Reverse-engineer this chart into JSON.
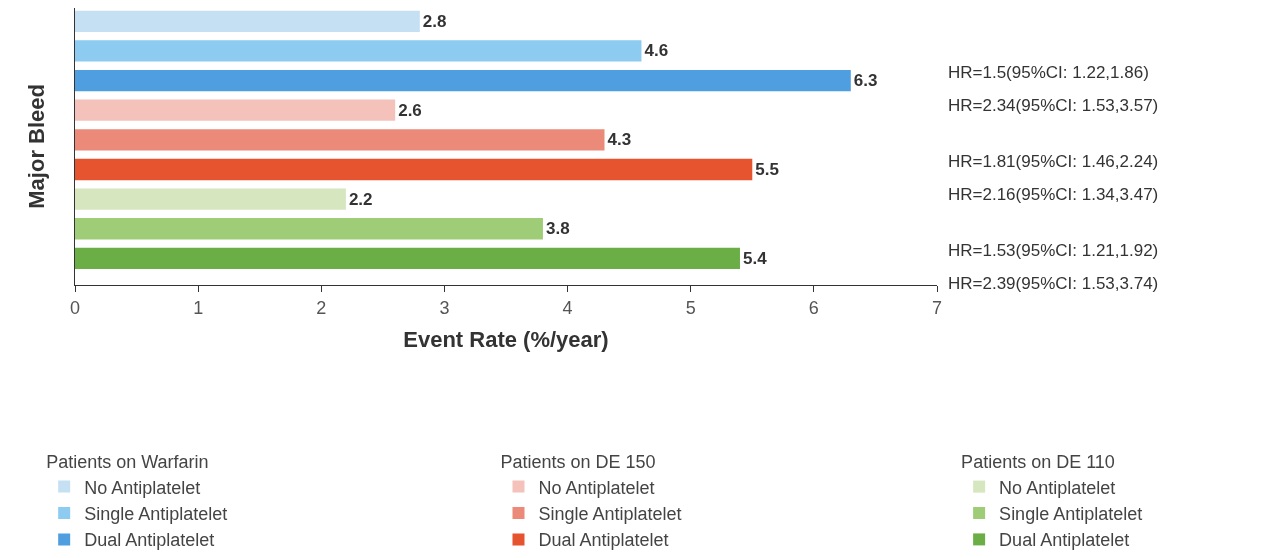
{
  "chart_data": {
    "type": "bar",
    "orientation": "horizontal",
    "ylabel": "Major Bleed",
    "xlabel": "Event Rate (%/year)",
    "categories": [
      null,
      null,
      null,
      null,
      null,
      null,
      null,
      null,
      null
    ],
    "xlim": [
      0,
      7
    ],
    "xticks": [
      0,
      1,
      2,
      3,
      4,
      5,
      6,
      7
    ],
    "legend": "bottom",
    "data_labels": true,
    "tick_labels": "x",
    "series": [
      {
        "name": "No Antiplatelet",
        "color": "#c5e0f3",
        "values": [
          2.8,
          null,
          null,
          null,
          null,
          null,
          null,
          null,
          null
        ]
      },
      {
        "name": "Single Antiplatelet",
        "color": "#8ecbf0",
        "values": [
          null,
          4.6,
          null,
          null,
          null,
          null,
          null,
          null,
          null
        ]
      },
      {
        "name": "Dual Antiplatelet",
        "color": "#4f9fe0",
        "values": [
          null,
          null,
          6.3,
          null,
          null,
          null,
          null,
          null,
          null
        ]
      },
      {
        "name": "No Antiplatelet",
        "color": "#f4c2bb",
        "values": [
          null,
          null,
          null,
          2.6,
          null,
          null,
          null,
          null,
          null
        ]
      },
      {
        "name": "Single Antiplatelet",
        "color": "#eb8a78",
        "values": [
          null,
          null,
          null,
          null,
          4.3,
          null,
          null,
          null,
          null
        ]
      },
      {
        "name": "Dual Antiplatelet",
        "color": "#e5532f",
        "values": [
          null,
          null,
          null,
          null,
          null,
          5.5,
          null,
          null,
          null
        ]
      },
      {
        "name": "No Antiplatelet",
        "color": "#d6e6bf",
        "values": [
          null,
          null,
          null,
          null,
          null,
          null,
          2.2,
          null,
          null
        ]
      },
      {
        "name": "Single Antiplatelet",
        "color": "#9fcc77",
        "values": [
          null,
          null,
          null,
          null,
          null,
          null,
          null,
          3.8,
          null
        ]
      },
      {
        "name": "Dual Antiplatelet",
        "color": "#6aae45",
        "values": [
          null,
          null,
          null,
          null,
          null,
          null,
          null,
          null,
          5.4
        ]
      }
    ],
    "annotations": [
      "Patients on Warfarin",
      "Patients on DE 150",
      "Patients on DE 110",
      "HR=1.5(95%CI: 1.22,1.86)",
      "HR=2.34(95%CI: 1.53,3.57)",
      "HR=1.81(95%CI: 1.46,2.24)",
      "HR=2.16(95%CI: 1.34,3.47)",
      "HR=1.53(95%CI: 1.21,1.92)",
      "HR=2.39(95%CI: 1.53,3.74)"
    ]
  }
}
